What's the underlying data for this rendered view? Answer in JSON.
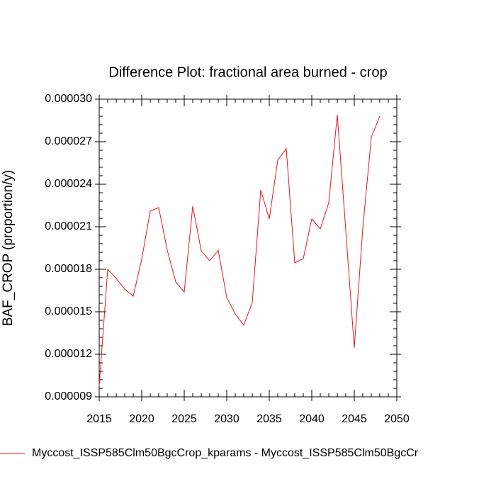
{
  "chart_data": {
    "type": "line",
    "title": "Difference Plot: fractional area burned - crop",
    "y_label": "BAF_CROP  (proportion/y)",
    "x": [
      2015,
      2016,
      2017,
      2018,
      2019,
      2020,
      2021,
      2022,
      2023,
      2024,
      2025,
      2026,
      2027,
      2028,
      2029,
      2030,
      2031,
      2032,
      2033,
      2034,
      2035,
      2036,
      2037,
      2038,
      2039,
      2040,
      2041,
      2042,
      2043,
      2044,
      2045,
      2046,
      2047,
      2048
    ],
    "series": [
      {
        "name": "Myccost_ISSP585Clm50BgcCrop_kparams - Myccost_ISSP585Clm50BgcCr",
        "color": "#e8141e",
        "values": [
          9.75e-06,
          1.8e-05,
          1.735e-05,
          1.66e-05,
          1.61e-05,
          1.87e-05,
          2.21e-05,
          2.235e-05,
          1.935e-05,
          1.71e-05,
          1.64e-05,
          2.245e-05,
          1.93e-05,
          1.86e-05,
          1.935e-05,
          1.6e-05,
          1.485e-05,
          1.405e-05,
          1.565e-05,
          2.36e-05,
          2.155e-05,
          2.57e-05,
          2.65e-05,
          1.845e-05,
          1.875e-05,
          2.155e-05,
          2.085e-05,
          2.27e-05,
          2.89e-05,
          2.075e-05,
          1.245e-05,
          2.09e-05,
          2.73e-05,
          2.88e-05
        ]
      }
    ],
    "xlim": [
      2015,
      2050
    ],
    "xticks": [
      2015,
      2020,
      2025,
      2030,
      2035,
      2040,
      2045,
      2050
    ],
    "ylim": [
      9e-06,
      3e-05
    ],
    "yticks": [
      {
        "value": 9e-06,
        "label": "0.000009"
      },
      {
        "value": 1.2e-05,
        "label": "0.000012"
      },
      {
        "value": 1.5e-05,
        "label": "0.000015"
      },
      {
        "value": 1.8e-05,
        "label": "0.000018"
      },
      {
        "value": 2.1e-05,
        "label": "0.000021"
      },
      {
        "value": 2.4e-05,
        "label": "0.000024"
      },
      {
        "value": 2.7e-05,
        "label": "0.000027"
      },
      {
        "value": 3e-05,
        "label": "0.000030"
      }
    ]
  }
}
